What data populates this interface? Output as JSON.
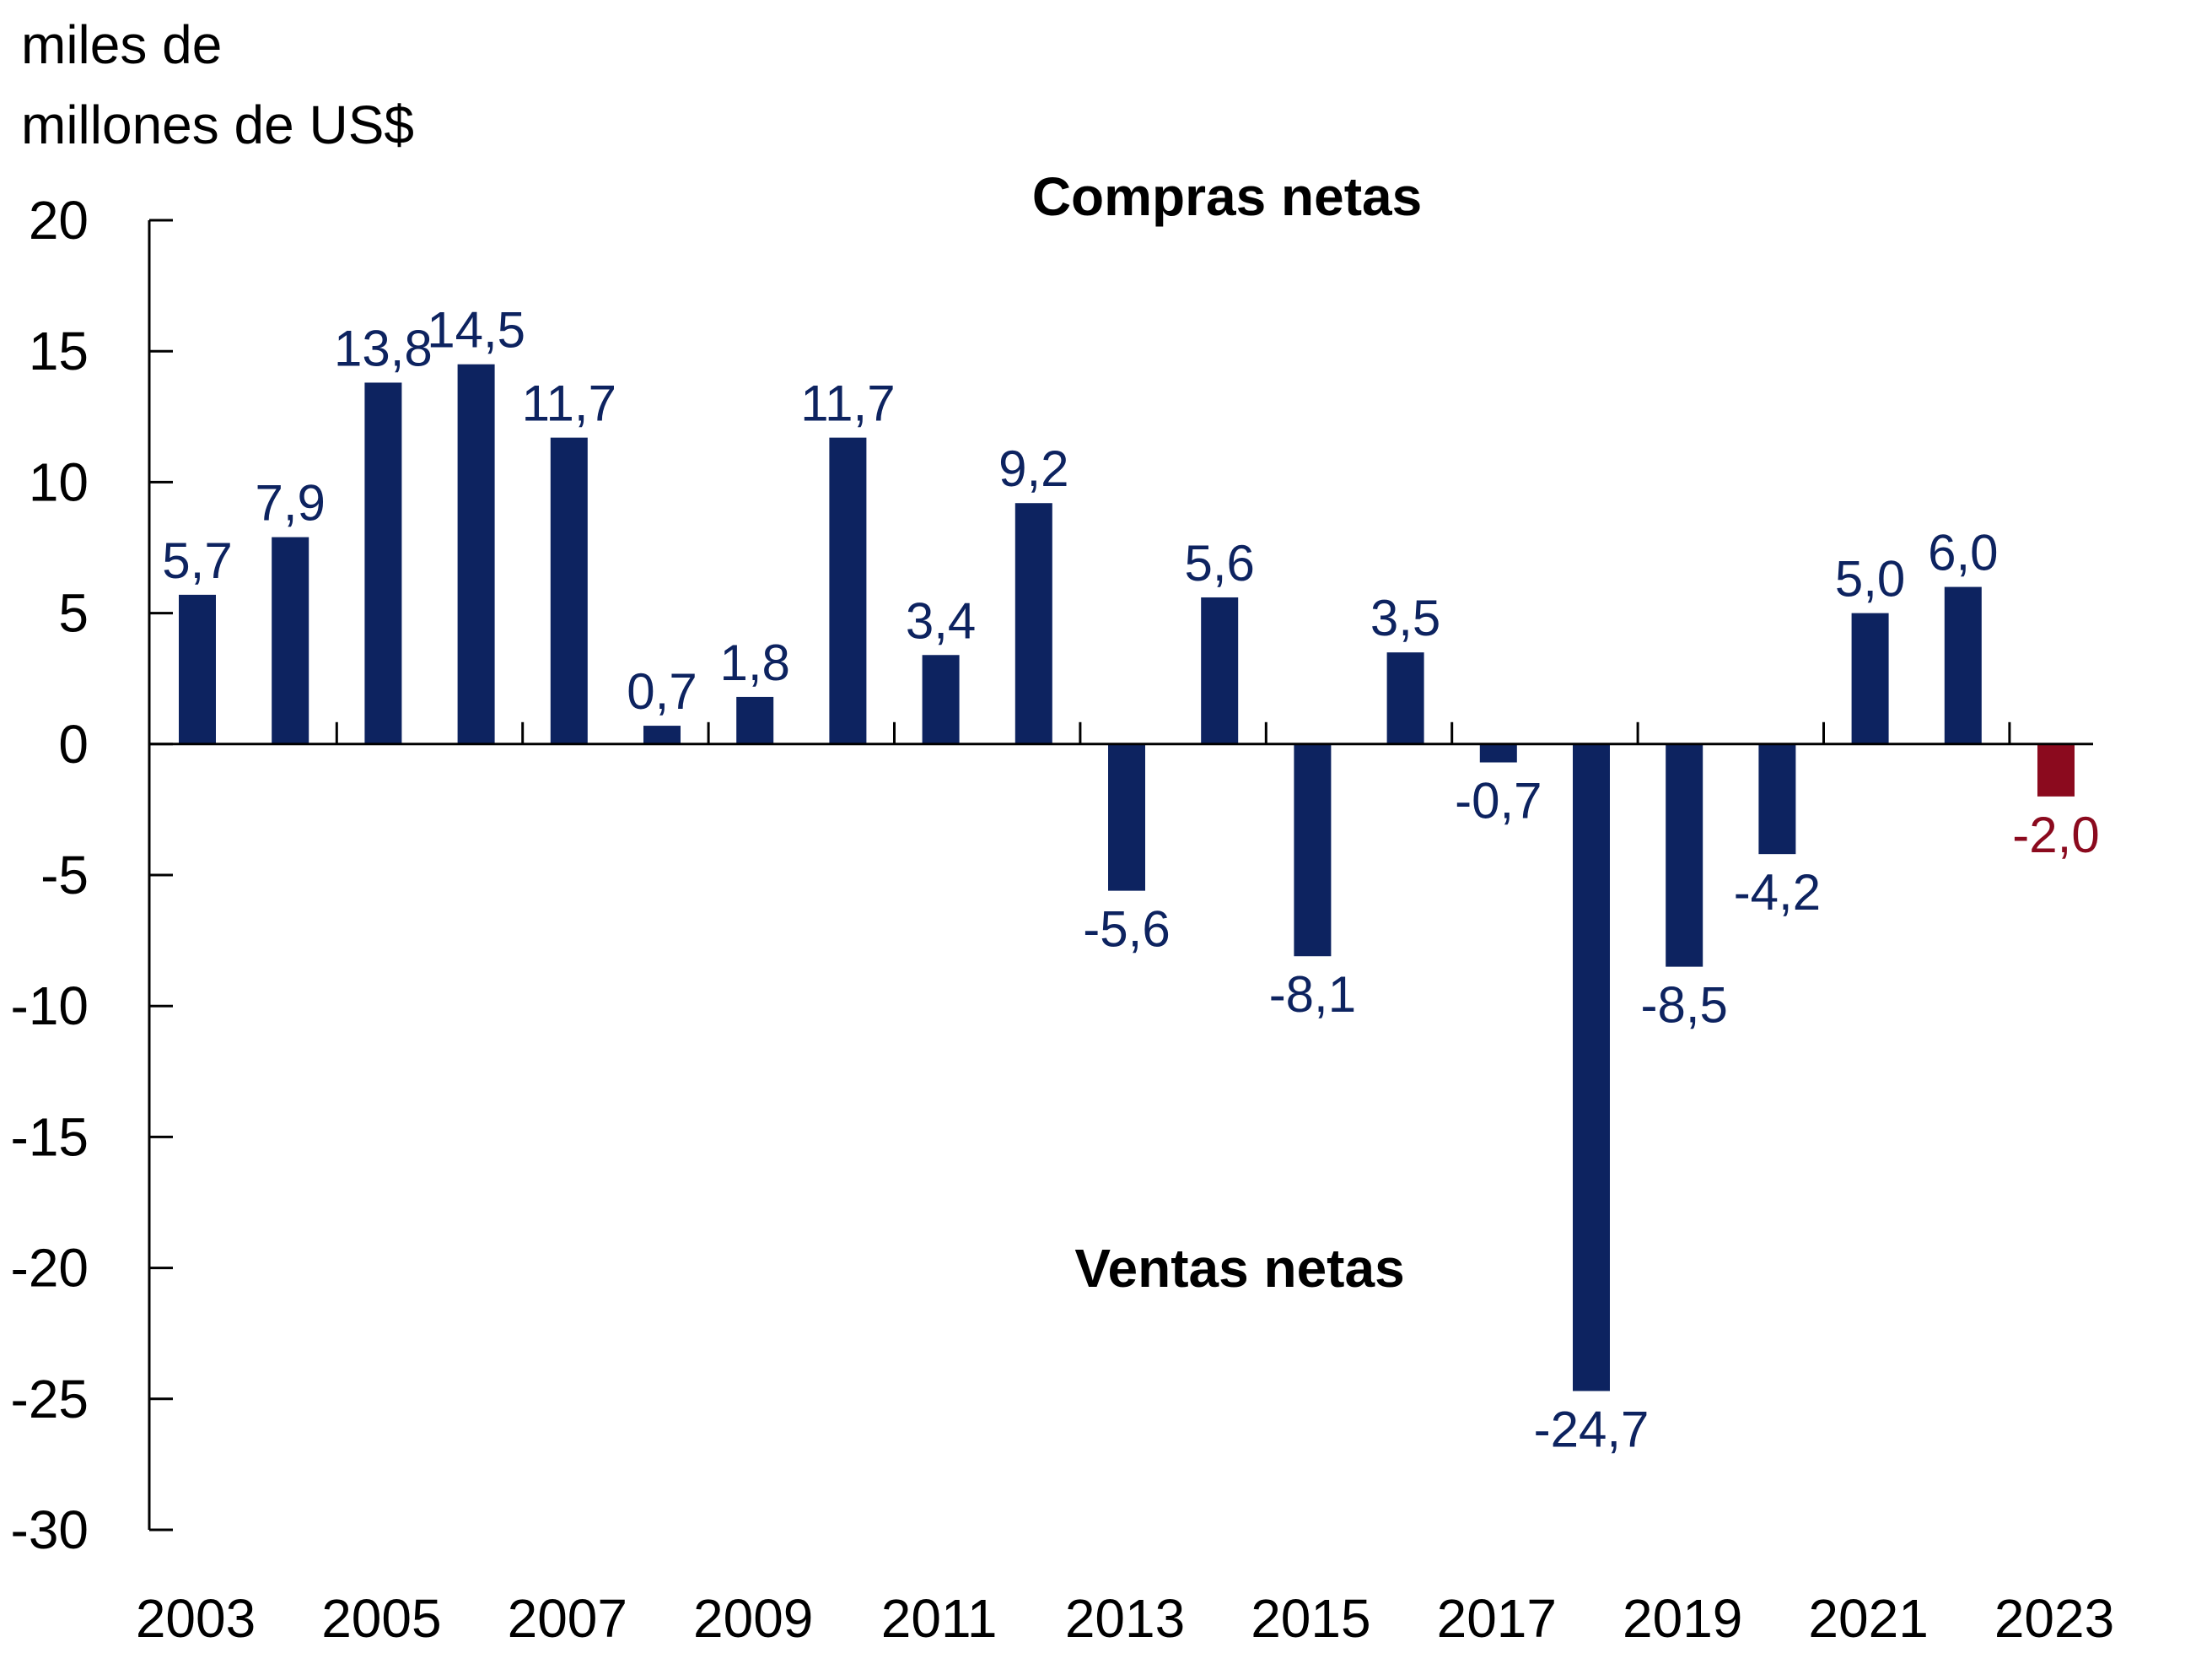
{
  "chart_data": {
    "type": "bar",
    "ylabel_lines": [
      "miles de",
      "millones de US$"
    ],
    "annotations": {
      "top": "Compras netas",
      "bottom": "Ventas netas"
    },
    "ylim": [
      -30,
      20
    ],
    "yticks": [
      20,
      15,
      10,
      5,
      0,
      -5,
      -10,
      -15,
      -20,
      -25,
      -30
    ],
    "categories": [
      "2003",
      "2004",
      "2005",
      "2006",
      "2007",
      "2008",
      "2009",
      "2010",
      "2011",
      "2012",
      "2013",
      "2014",
      "2015",
      "2016",
      "2017",
      "2018",
      "2019",
      "2020",
      "2021",
      "2022",
      "2023"
    ],
    "values": [
      5.7,
      7.9,
      13.8,
      14.5,
      11.7,
      0.7,
      1.8,
      11.7,
      3.4,
      9.2,
      -5.6,
      5.6,
      -8.1,
      3.5,
      -0.7,
      -24.7,
      -8.5,
      -4.2,
      5.0,
      6.0,
      -2.0
    ],
    "value_labels": [
      "5,7",
      "7,9",
      "13,8",
      "14,5",
      "11,7",
      "0,7",
      "1,8",
      "11,7",
      "3,4",
      "9,2",
      "-5,6",
      "5,6",
      "-8,1",
      "3,5",
      "-0,7",
      "-24,7",
      "-8,5",
      "-4,2",
      "5,0",
      "6,0",
      "-2,0"
    ],
    "xtick_labels": [
      "2003",
      "2005",
      "2007",
      "2009",
      "2011",
      "2013",
      "2015",
      "2017",
      "2019",
      "2021",
      "2023"
    ],
    "colors": {
      "bar": "#0d2360",
      "highlight": "#8b0a1e",
      "axis": "#000000",
      "text": "#000000"
    },
    "highlight_index": 20
  }
}
